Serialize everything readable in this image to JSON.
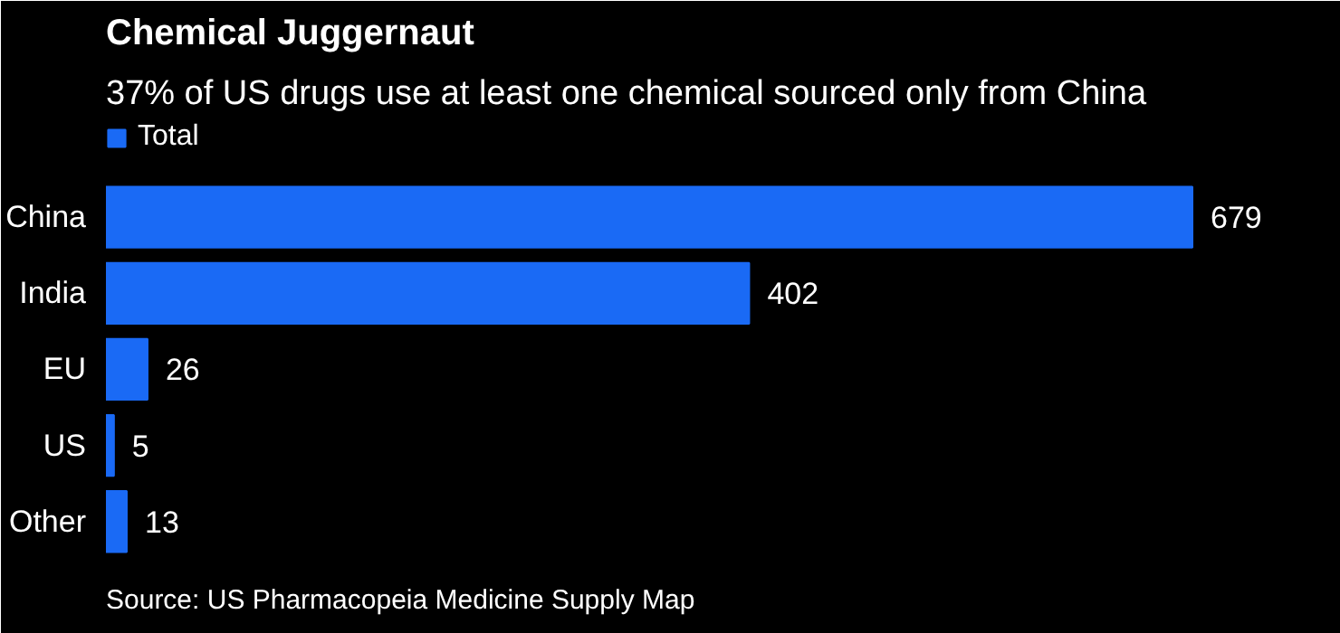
{
  "chart_data": {
    "type": "bar",
    "orientation": "horizontal",
    "title": "Chemical Juggernaut",
    "subtitle": "37% of US drugs use at least one chemical sourced only from China",
    "categories": [
      "China",
      "India",
      "EU",
      "US",
      "Other"
    ],
    "series": [
      {
        "name": "Total",
        "color": "#1a6af5",
        "values": [
          679,
          402,
          26,
          5,
          13
        ]
      }
    ],
    "data_labels": true,
    "legend": "top left",
    "grid": false,
    "annotations": [
      "Source: US Pharmacopeia Medicine Supply Map"
    ]
  }
}
